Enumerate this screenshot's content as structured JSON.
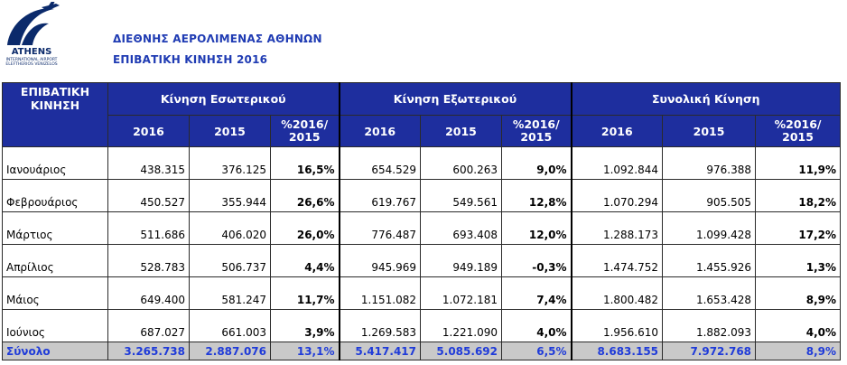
{
  "logo": {
    "name": "ATHENS",
    "sub1": "INTERNATIONAL AIRPORT",
    "sub2": "ELEFTHERIOS VENIZELOS"
  },
  "titles": {
    "line1": "ΔΙΕΘΝΗΣ ΑΕΡΟΛΙΜΕΝΑΣ ΑΘΗΝΩΝ",
    "line2": "ΕΠΙΒΑΤΙΚΗ ΚΙΝΗΣΗ 2016"
  },
  "colors": {
    "header_bg": "#1e2e9e",
    "title_text": "#1f3bb3",
    "total_bg": "#c9c9c9",
    "total_text": "#1f3bd9"
  },
  "table": {
    "corner": "ΕΠΙΒΑΤΙΚΗ ΚΙΝΗΣΗ",
    "groups": [
      "Κίνηση Εσωτερικού",
      "Κίνηση Εξωτερικού",
      "Συνολική Κίνηση"
    ],
    "sub": {
      "y1": "2016",
      "y2": "2015",
      "pct_line1": "%2016/",
      "pct_line2": "2015"
    },
    "rows": [
      {
        "month": "Ιανουάριος",
        "cells": [
          "438.315",
          "376.125",
          "16,5%",
          "654.529",
          "600.263",
          "9,0%",
          "1.092.844",
          "976.388",
          "11,9%"
        ]
      },
      {
        "month": "Φεβρουάριος",
        "cells": [
          "450.527",
          "355.944",
          "26,6%",
          "619.767",
          "549.561",
          "12,8%",
          "1.070.294",
          "905.505",
          "18,2%"
        ]
      },
      {
        "month": "Μάρτιος",
        "cells": [
          "511.686",
          "406.020",
          "26,0%",
          "776.487",
          "693.408",
          "12,0%",
          "1.288.173",
          "1.099.428",
          "17,2%"
        ]
      },
      {
        "month": "Απρίλιος",
        "cells": [
          "528.783",
          "506.737",
          "4,4%",
          "945.969",
          "949.189",
          "-0,3%",
          "1.474.752",
          "1.455.926",
          "1,3%"
        ]
      },
      {
        "month": "Μάιος",
        "cells": [
          "649.400",
          "581.247",
          "11,7%",
          "1.151.082",
          "1.072.181",
          "7,4%",
          "1.800.482",
          "1.653.428",
          "8,9%"
        ]
      },
      {
        "month": "Ιούνιος",
        "cells": [
          "687.027",
          "661.003",
          "3,9%",
          "1.269.583",
          "1.221.090",
          "4,0%",
          "1.956.610",
          "1.882.093",
          "4,0%"
        ]
      }
    ],
    "total": {
      "label": "Σύνολο",
      "cells": [
        "3.265.738",
        "2.887.076",
        "13,1%",
        "5.417.417",
        "5.085.692",
        "6,5%",
        "8.683.155",
        "7.972.768",
        "8,9%"
      ]
    }
  }
}
